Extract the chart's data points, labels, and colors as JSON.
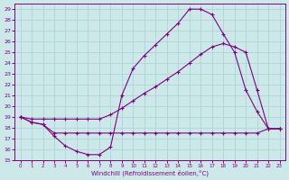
{
  "xlabel": "Windchill (Refroidissement éolien,°C)",
  "bg_color": "#cce8e8",
  "grid_color": "#b0d8d8",
  "line_color": "#800080",
  "xlim": [
    -0.5,
    23.5
  ],
  "ylim": [
    15,
    29.5
  ],
  "xticks": [
    0,
    1,
    2,
    3,
    4,
    5,
    6,
    7,
    8,
    9,
    10,
    11,
    12,
    13,
    14,
    15,
    16,
    17,
    18,
    19,
    20,
    21,
    22,
    23
  ],
  "yticks": [
    15,
    16,
    17,
    18,
    19,
    20,
    21,
    22,
    23,
    24,
    25,
    26,
    27,
    28,
    29
  ],
  "line_curve_x": [
    0,
    1,
    2,
    3,
    4,
    5,
    6,
    7,
    8,
    9,
    10,
    11,
    12,
    13,
    14,
    15,
    16,
    17,
    18,
    19,
    20,
    21,
    22,
    23
  ],
  "line_curve_y": [
    19,
    18.5,
    18.3,
    17.2,
    16.3,
    15.8,
    15.5,
    15.5,
    16.2,
    21.0,
    23.5,
    24.7,
    25.7,
    26.7,
    27.7,
    29.0,
    29.0,
    28.5,
    26.7,
    25.0,
    21.5,
    19.5,
    17.9,
    17.9
  ],
  "line_diag_x": [
    0,
    1,
    2,
    3,
    4,
    5,
    6,
    7,
    8,
    9,
    10,
    11,
    12,
    13,
    14,
    15,
    16,
    17,
    18,
    19,
    20,
    21,
    22,
    23
  ],
  "line_diag_y": [
    19,
    18.8,
    18.8,
    18.8,
    18.8,
    18.8,
    18.8,
    18.8,
    19.2,
    19.8,
    20.5,
    21.2,
    21.8,
    22.5,
    23.2,
    24.0,
    24.8,
    25.5,
    25.8,
    25.5,
    25.0,
    21.5,
    17.9,
    17.9
  ],
  "line_flat_x": [
    0,
    1,
    2,
    3,
    4,
    5,
    6,
    7,
    8,
    9,
    10,
    11,
    12,
    13,
    14,
    15,
    16,
    17,
    18,
    19,
    20,
    21,
    22,
    23
  ],
  "line_flat_y": [
    19,
    18.5,
    18.3,
    17.5,
    17.5,
    17.5,
    17.5,
    17.5,
    17.5,
    17.5,
    17.5,
    17.5,
    17.5,
    17.5,
    17.5,
    17.5,
    17.5,
    17.5,
    17.5,
    17.5,
    17.5,
    17.5,
    17.9,
    17.9
  ]
}
